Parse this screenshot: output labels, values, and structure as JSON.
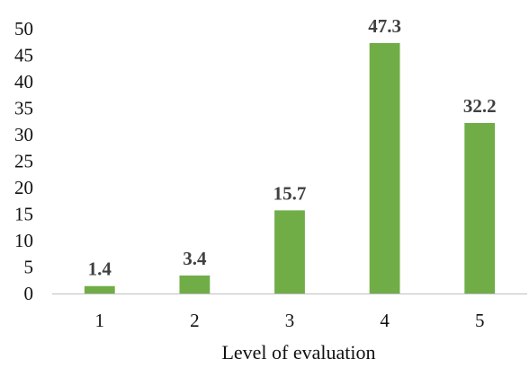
{
  "chart_data": {
    "type": "bar",
    "title": "",
    "xlabel": "Level of evaluation",
    "ylabel": "",
    "categories": [
      "1",
      "2",
      "3",
      "4",
      "5"
    ],
    "values": [
      1.4,
      3.4,
      15.7,
      47.3,
      32.2
    ],
    "value_labels": [
      "1.4",
      "3.4",
      "15.7",
      "47.3",
      "32.2"
    ],
    "ylim": [
      0,
      50
    ],
    "yticks": [
      0,
      5,
      10,
      15,
      20,
      25,
      30,
      35,
      40,
      45,
      50
    ],
    "ytick_labels": [
      "0",
      "5",
      "10",
      "15",
      "20",
      "25",
      "30",
      "35",
      "40",
      "45",
      "50"
    ],
    "grid": false,
    "legend": "none",
    "bar_color": "#70ad47",
    "label_color": "#404040"
  }
}
